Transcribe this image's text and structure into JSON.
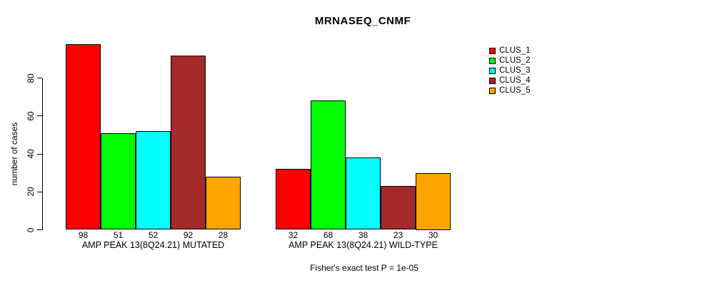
{
  "chart_data": {
    "type": "bar",
    "title": "MRNASEQ_CNMF",
    "ylabel": "number of cases",
    "ylim": [
      0,
      100
    ],
    "yticks": [
      0,
      20,
      40,
      60,
      80
    ],
    "grid": false,
    "legend_position": "top-right",
    "categories": [
      "AMP PEAK 13(8Q24.21) MUTATED",
      "AMP PEAK 13(8Q24.21) WILD-TYPE"
    ],
    "series": [
      {
        "name": "CLUS_1",
        "color": "#FF0000",
        "values": [
          98,
          32
        ]
      },
      {
        "name": "CLUS_2",
        "color": "#00FF00",
        "values": [
          51,
          68
        ]
      },
      {
        "name": "CLUS_3",
        "color": "#00FFFF",
        "values": [
          52,
          38
        ]
      },
      {
        "name": "CLUS_4",
        "color": "#A52A2A",
        "values": [
          92,
          23
        ]
      },
      {
        "name": "CLUS_5",
        "color": "#FFA500",
        "values": [
          28,
          30
        ]
      }
    ],
    "footnote": "Fisher's exact test P = 1e-05"
  }
}
